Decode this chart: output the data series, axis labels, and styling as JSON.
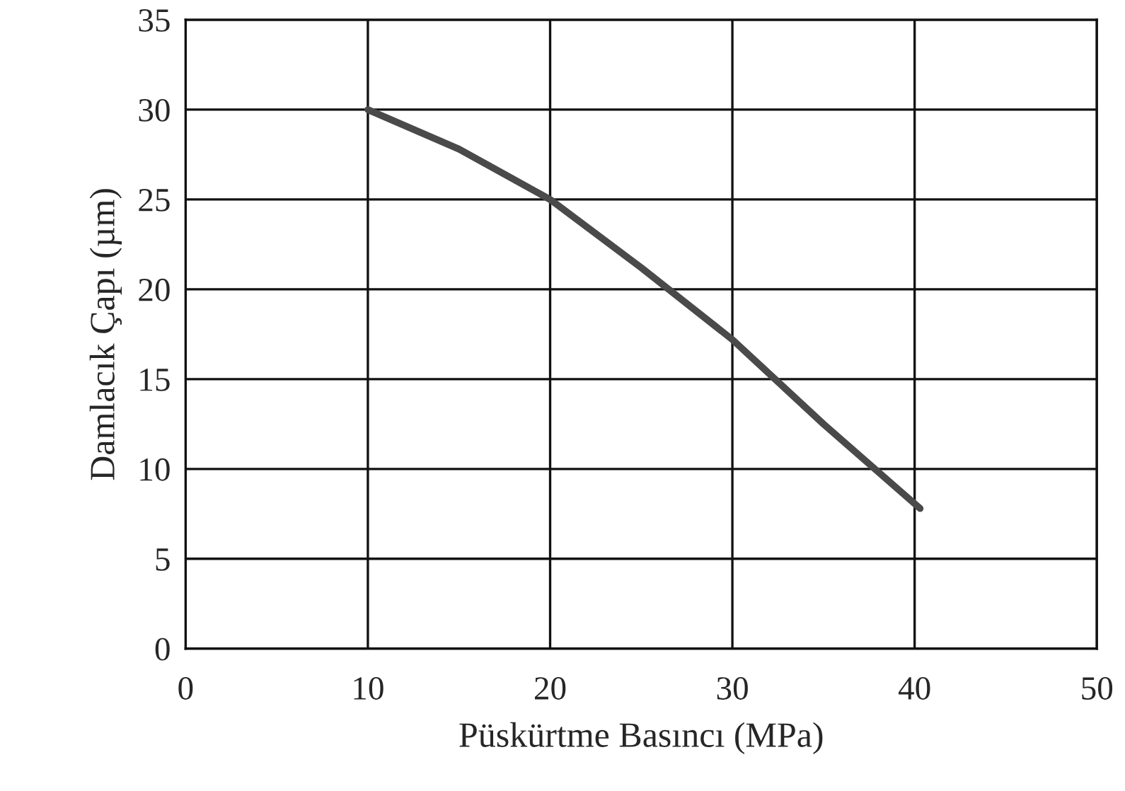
{
  "chart_data": {
    "type": "line",
    "xlabel": "Püskürtme Basıncı (MPa)",
    "ylabel": "Damlacık Çapı (µm)",
    "series": [
      {
        "color": "#4a4a4a",
        "x": [
          10,
          15,
          20,
          25,
          30,
          35,
          40.3
        ],
        "values": [
          30,
          27.8,
          25,
          21.2,
          17.2,
          12.5,
          7.8
        ]
      }
    ],
    "xlim": [
      0,
      50
    ],
    "ylim": [
      0,
      35
    ],
    "xticks": [
      0,
      10,
      20,
      30,
      40,
      50
    ],
    "yticks": [
      0,
      5,
      10,
      15,
      20,
      25,
      30,
      35
    ],
    "grid": true,
    "line_style": "solid",
    "marker": "none"
  }
}
